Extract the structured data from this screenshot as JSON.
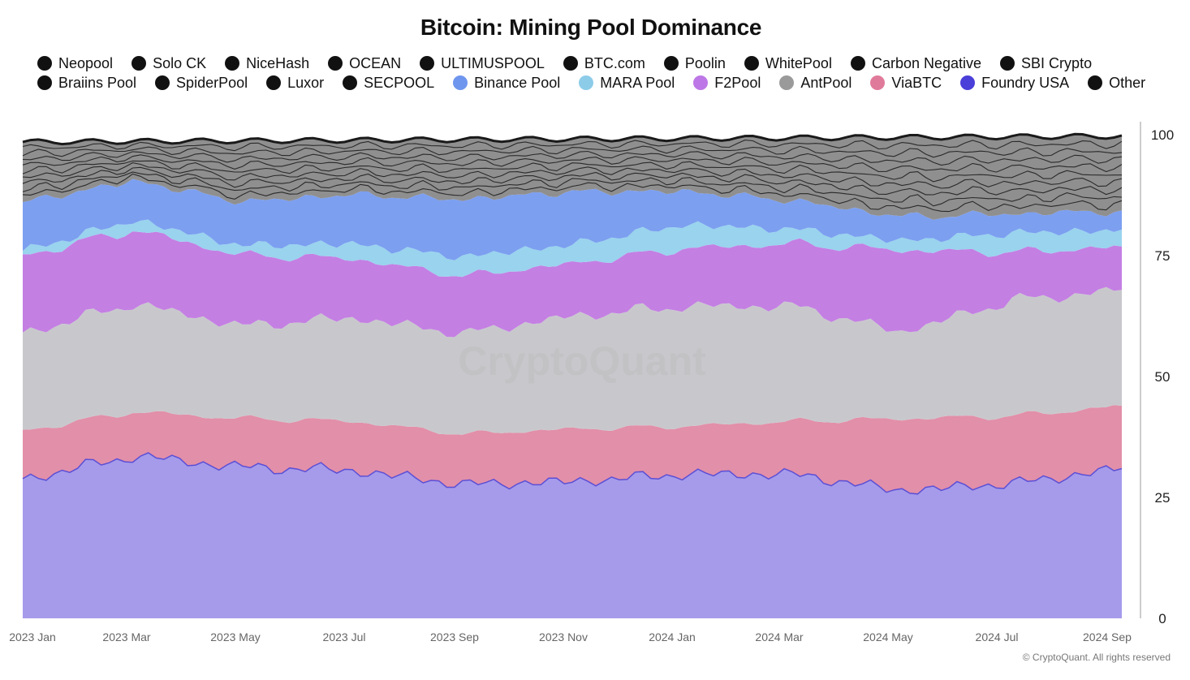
{
  "chart_data": {
    "type": "area",
    "stacked": true,
    "percent": true,
    "title": "Bitcoin: Mining Pool Dominance",
    "xlabel": "",
    "ylabel": "",
    "ylim": [
      0,
      100
    ],
    "yticks": [
      0,
      25,
      50,
      75,
      100
    ],
    "xtick_labels": [
      "2023 Jan",
      "2023 Mar",
      "2023 May",
      "2023 Jul",
      "2023 Sep",
      "2023 Nov",
      "2024 Jan",
      "2024 Mar",
      "2024 May",
      "2024 Jul",
      "2024 Sep"
    ],
    "watermark": "CryptoQuant",
    "x": [
      "2023 Jan",
      "2023 Mar",
      "2023 May",
      "2023 Jul",
      "2023 Sep",
      "2023 Nov",
      "2024 Jan",
      "2024 Mar",
      "2024 May",
      "2024 Jul",
      "2024 Sep"
    ],
    "legend_rows": [
      [
        "Neopool",
        "Solo CK",
        "NiceHash",
        "OCEAN",
        "ULTIMUSPOOL",
        "BTC.com",
        "Poolin",
        "WhitePool",
        "Carbon Negative",
        "SBI Crypto"
      ],
      [
        "Braiins Pool",
        "SpiderPool",
        "Luxor",
        "SECPOOL",
        "Binance Pool",
        "MARA Pool",
        "F2Pool",
        "AntPool",
        "ViaBTC",
        "Foundry USA",
        "Other"
      ]
    ],
    "series": [
      {
        "name": "Foundry USA",
        "color": "#a59bea",
        "line": "#5b4fd6",
        "values": [
          28.5,
          33,
          31,
          30,
          28,
          28.5,
          30,
          30,
          26.5,
          28,
          31
        ]
      },
      {
        "name": "ViaBTC",
        "color": "#e28fa9",
        "values": [
          10,
          9,
          10,
          10,
          10.5,
          11,
          10,
          11,
          15,
          14,
          13
        ]
      },
      {
        "name": "AntPool",
        "color": "#c8c8cc",
        "values": [
          20,
          22,
          19,
          21,
          21,
          23.5,
          25,
          24,
          18,
          24,
          24
        ]
      },
      {
        "name": "F2Pool",
        "color": "#c47fe3",
        "values": [
          16,
          15,
          14.5,
          12,
          12,
          11,
          12,
          13,
          17,
          10,
          9
        ]
      },
      {
        "name": "MARA Pool",
        "color": "#99d3ee",
        "values": [
          1,
          2,
          2,
          3,
          4,
          4,
          5,
          3,
          2,
          4,
          3.5
        ]
      },
      {
        "name": "Binance Pool",
        "color": "#7c9ff0",
        "values": [
          10,
          8,
          9,
          10,
          12,
          11,
          7,
          6,
          5,
          4,
          4
        ]
      },
      {
        "name": "Other pools",
        "color": "#8f8f8f",
        "values": [
          12.5,
          8,
          12.5,
          11,
          12.5,
          11,
          11,
          13,
          16.5,
          16,
          15.5
        ]
      }
    ],
    "colors": {
      "black_dot": "#111111",
      "binance": "#6f96ee",
      "mara": "#8ccce9",
      "f2pool": "#bd77e6",
      "antpool": "#9a9a9a",
      "viabtc": "#e07a9b",
      "foundry": "#4a3fd8"
    }
  },
  "footer": "© CryptoQuant. All rights reserved"
}
